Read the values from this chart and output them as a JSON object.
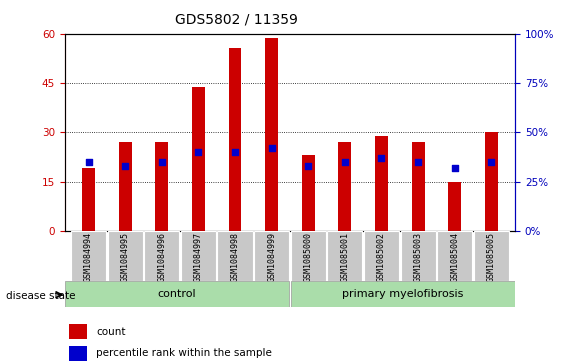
{
  "title": "GDS5802 / 11359",
  "samples": [
    "GSM1084994",
    "GSM1084995",
    "GSM1084996",
    "GSM1084997",
    "GSM1084998",
    "GSM1084999",
    "GSM1085000",
    "GSM1085001",
    "GSM1085002",
    "GSM1085003",
    "GSM1085004",
    "GSM1085005"
  ],
  "counts": [
    19,
    27,
    27,
    44,
    56,
    59,
    23,
    27,
    29,
    27,
    15,
    30
  ],
  "percentile_ranks_pct": [
    35,
    33,
    35,
    40,
    40,
    42,
    33,
    35,
    37,
    35,
    32,
    35
  ],
  "control_count": 6,
  "disease_count": 6,
  "ylim_left": [
    0,
    60
  ],
  "ylim_right": [
    0,
    100
  ],
  "yticks_left": [
    0,
    15,
    30,
    45,
    60
  ],
  "yticks_right": [
    0,
    25,
    50,
    75,
    100
  ],
  "bar_color": "#cc0000",
  "blue_color": "#0000cc",
  "tick_label_color_left": "#cc0000",
  "tick_label_color_right": "#0000bb",
  "label_area_color": "#aaddaa",
  "sample_bg_color": "#c8c8c8",
  "control_label": "control",
  "disease_label": "primary myelofibrosis",
  "disease_state_label": "disease state",
  "legend_count": "count",
  "legend_percentile": "percentile rank within the sample",
  "bar_width": 0.35,
  "blue_square_size": 18,
  "title_fontsize": 10,
  "tick_fontsize": 7.5,
  "sample_fontsize": 6,
  "label_fontsize": 8,
  "legend_fontsize": 7.5
}
